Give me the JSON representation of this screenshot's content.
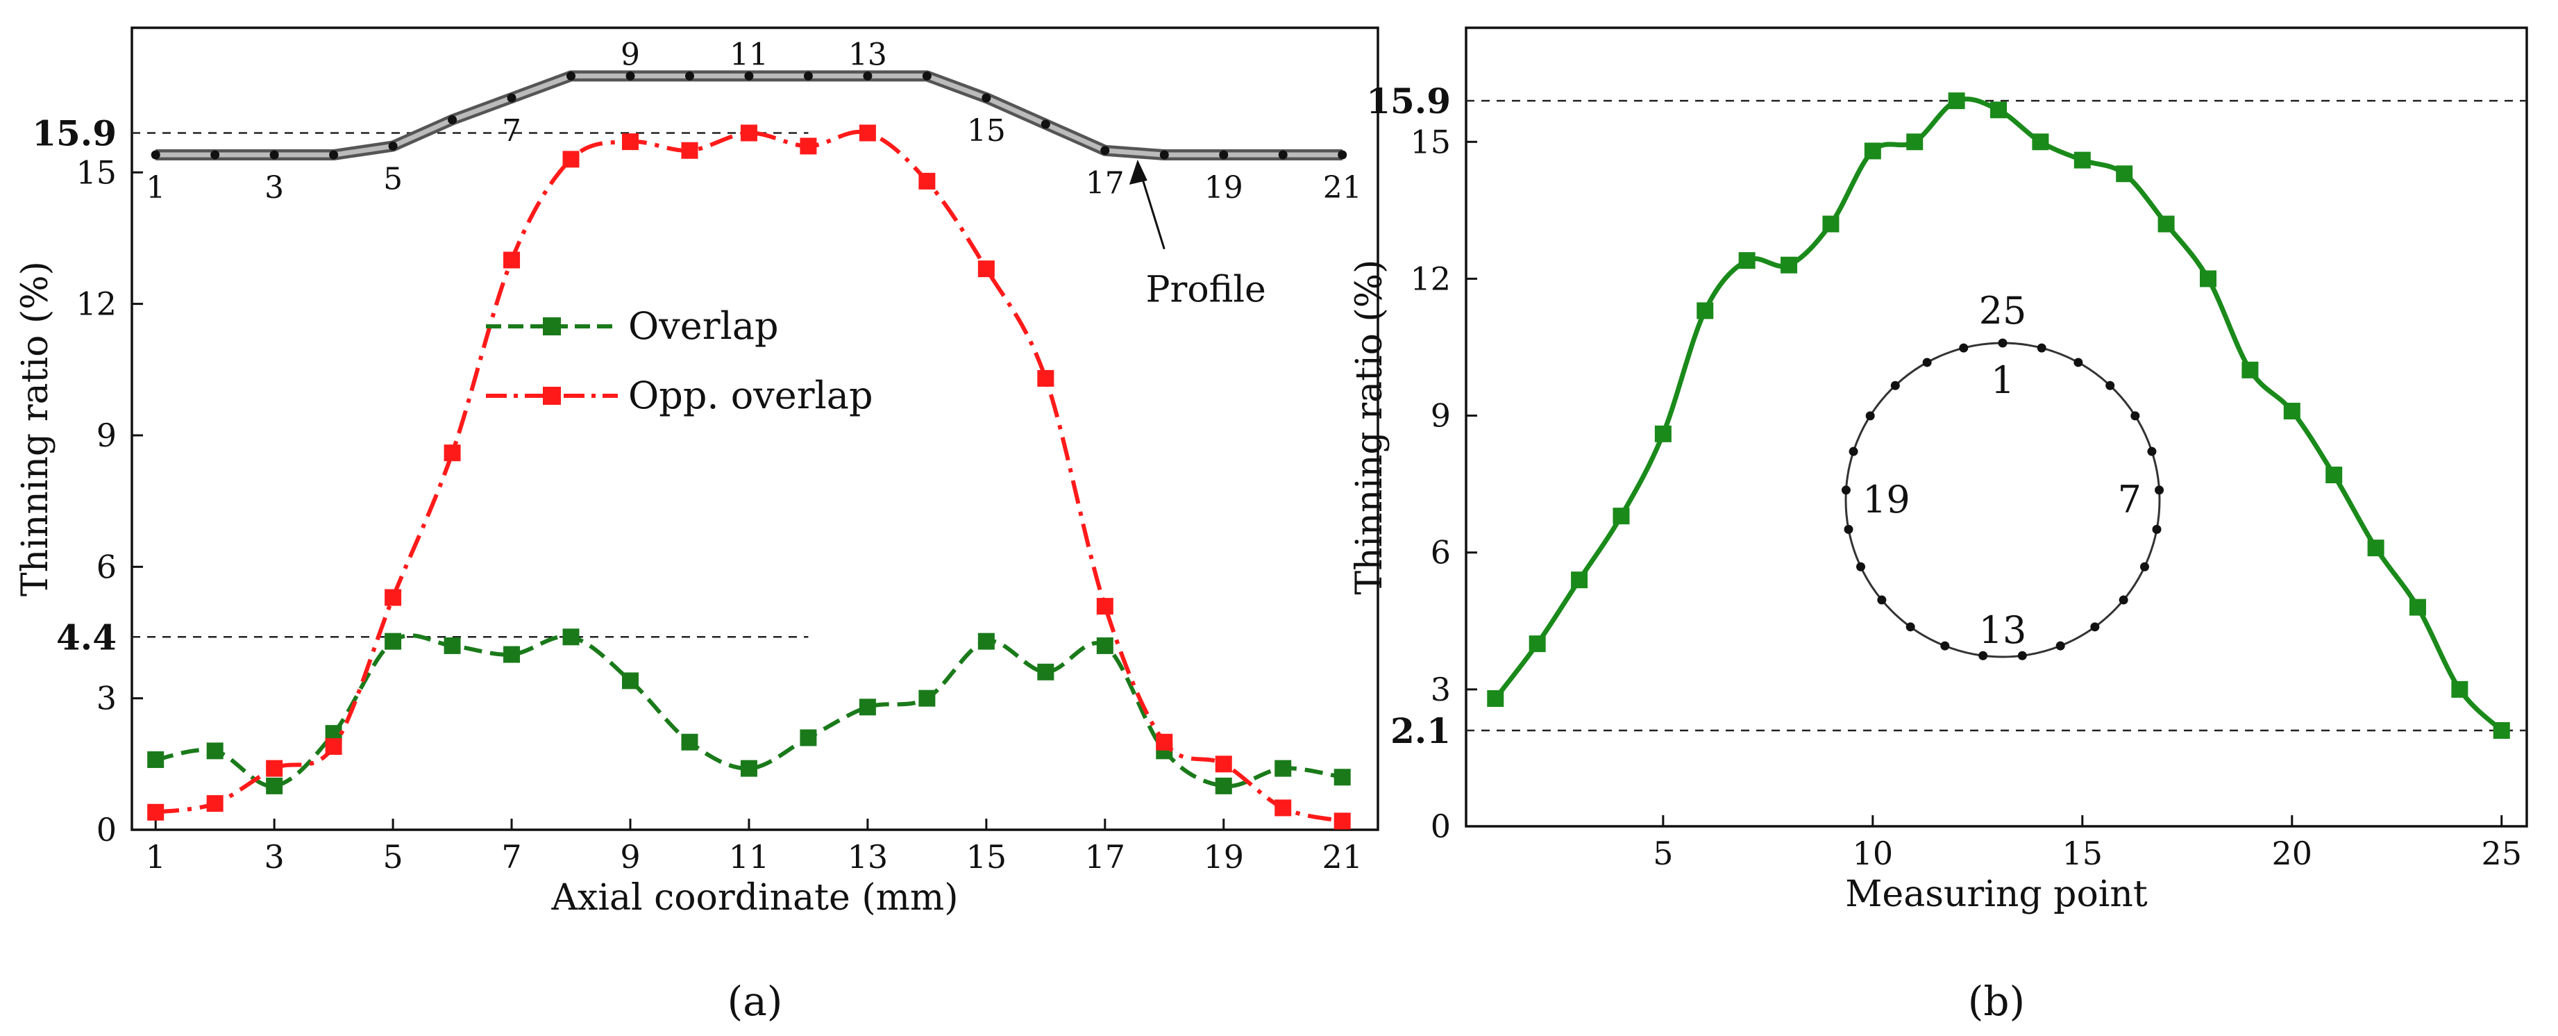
{
  "chart_data": [
    {
      "panel_label": "(a)",
      "type": "line",
      "xlabel": "Axial coordinate (mm)",
      "ylabel": "Thinning ratio (%)",
      "xlim": [
        0.6,
        21.6
      ],
      "ylim": [
        0,
        18.3
      ],
      "xticks": [
        1,
        3,
        5,
        7,
        9,
        11,
        13,
        15,
        17,
        19,
        21
      ],
      "yticks": [
        0,
        3,
        6,
        9,
        12,
        15
      ],
      "x": [
        1,
        2,
        3,
        4,
        5,
        6,
        7,
        8,
        9,
        10,
        11,
        12,
        13,
        14,
        15,
        16,
        17,
        18,
        19,
        20,
        21
      ],
      "series": [
        {
          "name": "Overlap",
          "color": "#1a7a1a",
          "style": "dashed",
          "values": [
            1.6,
            1.8,
            1.0,
            2.2,
            4.3,
            4.2,
            4.0,
            4.4,
            3.4,
            2.0,
            1.4,
            2.1,
            2.8,
            3.0,
            4.3,
            3.6,
            4.2,
            1.8,
            1.0,
            1.4,
            1.2
          ]
        },
        {
          "name": "Opp. overlap",
          "color": "#ff1a1a",
          "style": "dash-dot",
          "values": [
            0.4,
            0.6,
            1.4,
            1.9,
            5.3,
            8.6,
            13.0,
            15.3,
            15.7,
            15.5,
            15.9,
            15.6,
            15.9,
            14.8,
            12.8,
            10.3,
            5.1,
            2.0,
            1.5,
            0.5,
            0.2
          ]
        }
      ],
      "legend": [
        "Overlap",
        "Opp. overlap"
      ],
      "reference_lines": [
        {
          "label": "15.9",
          "value": 15.9
        },
        {
          "label": "4.4",
          "value": 4.4
        }
      ],
      "profile": {
        "annotation": "Profile",
        "y_values": [
          15.4,
          15.4,
          15.4,
          15.4,
          15.6,
          16.2,
          16.7,
          17.2,
          17.2,
          17.2,
          17.2,
          17.2,
          17.2,
          17.2,
          16.7,
          16.1,
          15.5,
          15.4,
          15.4,
          15.4,
          15.4
        ],
        "point_labels": [
          {
            "n": "1",
            "pos": "below"
          },
          {
            "n": "3",
            "pos": "below"
          },
          {
            "n": "5",
            "pos": "below"
          },
          {
            "n": "7",
            "pos": "below"
          },
          {
            "n": "9",
            "pos": "above"
          },
          {
            "n": "11",
            "pos": "above"
          },
          {
            "n": "13",
            "pos": "above"
          },
          {
            "n": "15",
            "pos": "below"
          },
          {
            "n": "17",
            "pos": "below"
          },
          {
            "n": "19",
            "pos": "below"
          },
          {
            "n": "21",
            "pos": "below"
          }
        ]
      }
    },
    {
      "panel_label": "(b)",
      "type": "line",
      "xlabel": "Measuring point",
      "ylabel": "Thinning ratio (%)",
      "xlim": [
        0.3,
        25.6
      ],
      "ylim": [
        0,
        17.5
      ],
      "xticks": [
        5,
        10,
        15,
        20,
        25
      ],
      "yticks": [
        0,
        3,
        6,
        9,
        12,
        15
      ],
      "x": [
        1,
        2,
        3,
        4,
        5,
        6,
        7,
        8,
        9,
        10,
        11,
        12,
        13,
        14,
        15,
        16,
        17,
        18,
        19,
        20,
        21,
        22,
        23,
        24,
        25
      ],
      "series": [
        {
          "name": "Thinning ratio",
          "color": "#1a8a1a",
          "style": "solid",
          "values": [
            2.8,
            4.0,
            5.4,
            6.8,
            8.6,
            11.3,
            12.4,
            12.3,
            13.2,
            14.8,
            15.0,
            15.9,
            15.7,
            15.0,
            14.6,
            14.3,
            13.2,
            12.0,
            10.0,
            9.1,
            7.7,
            6.1,
            4.8,
            3.0,
            2.1
          ]
        }
      ],
      "reference_lines": [
        {
          "label": "15.9",
          "value": 15.9
        },
        {
          "label": "2.1",
          "value": 2.1
        }
      ],
      "inset_circle": {
        "point_count": 25,
        "labels": {
          "outer_top": "25",
          "inner_top": "1",
          "right": "7",
          "bottom": "13",
          "left": "19"
        }
      }
    }
  ]
}
